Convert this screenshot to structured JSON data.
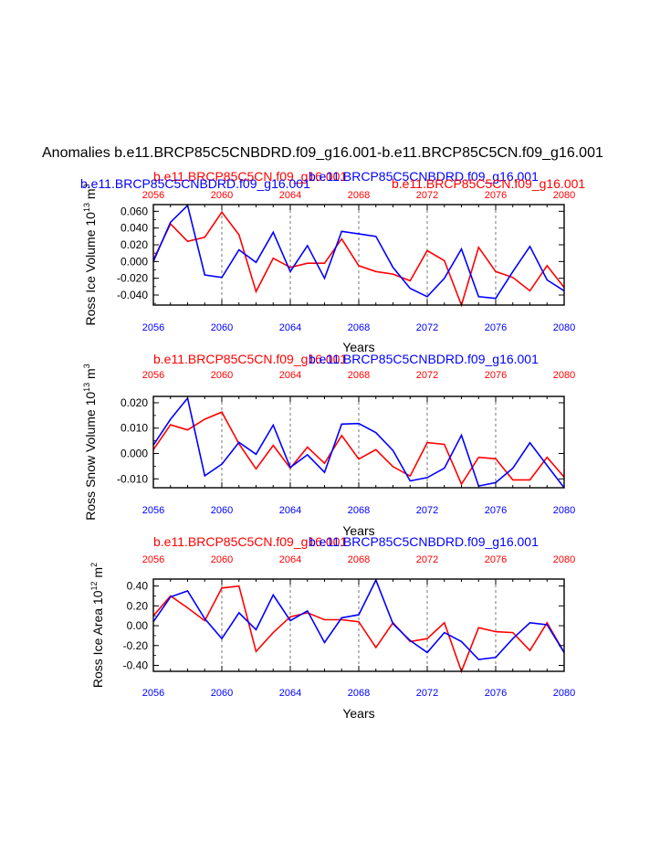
{
  "title": "Anomalies b.e11.BRCP85C5CNBDRD.f09_g16.001-b.e11.BRCP85C5CN.f09_g16.001",
  "colors": {
    "red": "#ff0000",
    "blue": "#0000ff",
    "black": "#000000"
  },
  "chart_data": [
    {
      "type": "line",
      "ylabel_main": "Ross Ice Volume 10",
      "ylabel_exp": "13",
      "ylabel_unit": " m",
      "ylabel_unit_exp": "3",
      "xlabel": "Years",
      "top_left_label_red": "b.e11.BRCP85C5CN.f09_g16.001",
      "top_left_label_blue": "b.e11.BRCP85C5CNBDRD.f09_g16.001",
      "top_mid_label_blue": "b.e11.BRCP85C5CNBDRD.f09_g16.001",
      "top_right_label_red": "b.e11.BRCP85C5CN.f09_g16.001",
      "xlim": [
        2056,
        2080
      ],
      "ylim": [
        -0.052,
        0.068
      ],
      "xticks": [
        "2056",
        "2060",
        "2064",
        "2068",
        "2072",
        "2076",
        "2080"
      ],
      "xtick_values": [
        2056,
        2060,
        2064,
        2068,
        2072,
        2076,
        2080
      ],
      "yticks": [
        "0.060",
        "0.040",
        "0.020",
        "0.000",
        "-0.020",
        "-0.040"
      ],
      "ytick_values": [
        0.06,
        0.04,
        0.02,
        0.0,
        -0.02,
        -0.04
      ],
      "gridlines": [
        2060,
        2064,
        2068,
        2072,
        2076
      ],
      "x": [
        2056,
        2057,
        2058,
        2059,
        2060,
        2061,
        2062,
        2063,
        2064,
        2065,
        2066,
        2067,
        2068,
        2069,
        2070,
        2071,
        2072,
        2073,
        2074,
        2075,
        2076,
        2077,
        2078,
        2079,
        2080
      ],
      "series": [
        {
          "name": "b.e11.BRCP85C5CN.f09_g16.001",
          "color": "#ff0000",
          "values": [
            0.002,
            0.045,
            0.024,
            0.029,
            0.059,
            0.032,
            -0.036,
            0.004,
            -0.007,
            -0.002,
            -0.002,
            0.027,
            -0.005,
            -0.012,
            -0.015,
            -0.023,
            0.013,
            0.001,
            -0.052,
            0.017,
            -0.012,
            -0.019,
            -0.035,
            -0.005,
            -0.031
          ]
        },
        {
          "name": "b.e11.BRCP85C5CNBDRD.f09_g16.001",
          "color": "#0000ff",
          "values": [
            0.0,
            0.047,
            0.067,
            -0.016,
            -0.019,
            0.014,
            -0.001,
            0.035,
            -0.012,
            0.019,
            -0.02,
            0.036,
            0.033,
            0.03,
            -0.007,
            -0.032,
            -0.042,
            -0.02,
            0.015,
            -0.042,
            -0.044,
            -0.012,
            0.018,
            -0.022,
            -0.035
          ]
        }
      ]
    },
    {
      "type": "line",
      "ylabel_main": "Ross Snow Volume 10",
      "ylabel_exp": "13",
      "ylabel_unit": " m",
      "ylabel_unit_exp": "3",
      "xlabel": "Years",
      "top_left_label_red": "b.e11.BRCP85C5CN.f09_g16.001",
      "top_mid_label_blue": "b.e11.BRCP85C5CNBDRD.f09_g16.001",
      "xlim": [
        2056,
        2080
      ],
      "ylim": [
        -0.0135,
        0.0225
      ],
      "xticks": [
        "2056",
        "2060",
        "2064",
        "2068",
        "2072",
        "2076",
        "2080"
      ],
      "xtick_values": [
        2056,
        2060,
        2064,
        2068,
        2072,
        2076,
        2080
      ],
      "yticks": [
        "0.020",
        "0.010",
        "0.000",
        "-0.010"
      ],
      "ytick_values": [
        0.02,
        0.01,
        0.0,
        -0.01
      ],
      "gridlines": [
        2060,
        2064,
        2068,
        2072,
        2076
      ],
      "x": [
        2056,
        2057,
        2058,
        2059,
        2060,
        2061,
        2062,
        2063,
        2064,
        2065,
        2066,
        2067,
        2068,
        2069,
        2070,
        2071,
        2072,
        2073,
        2074,
        2075,
        2076,
        2077,
        2078,
        2079,
        2080
      ],
      "series": [
        {
          "name": "b.e11.BRCP85C5CN.f09_g16.001",
          "color": "#ff0000",
          "values": [
            0.0015,
            0.0113,
            0.0093,
            0.0135,
            0.0163,
            0.0038,
            -0.0061,
            0.0032,
            -0.0058,
            0.0025,
            -0.0039,
            0.0071,
            -0.0022,
            0.0015,
            -0.0052,
            -0.0089,
            0.0043,
            0.0036,
            -0.0121,
            -0.0015,
            -0.0021,
            -0.0104,
            -0.0104,
            -0.0015,
            -0.0093
          ]
        },
        {
          "name": "b.e11.BRCP85C5CNBDRD.f09_g16.001",
          "color": "#0000ff",
          "values": [
            0.0033,
            0.0135,
            0.0218,
            -0.0088,
            -0.0042,
            0.0044,
            -0.0003,
            0.0112,
            -0.0055,
            -0.0005,
            -0.0074,
            0.0116,
            0.0118,
            0.0082,
            0.0012,
            -0.0108,
            -0.0095,
            -0.0058,
            0.0072,
            -0.0128,
            -0.0115,
            -0.0058,
            0.0042,
            -0.0047,
            -0.0135
          ]
        }
      ]
    },
    {
      "type": "line",
      "ylabel_main": "Ross Ice Area 10",
      "ylabel_exp": "12",
      "ylabel_unit": " m",
      "ylabel_unit_exp": "2",
      "xlabel": "Years",
      "top_left_label_red": "b.e11.BRCP85C5CN.f09_g16.001",
      "top_mid_label_blue": "b.e11.BRCP85C5CNBDRD.f09_g16.001",
      "xlim": [
        2056,
        2080
      ],
      "ylim": [
        -0.46,
        0.47
      ],
      "xticks": [
        "2056",
        "2060",
        "2064",
        "2068",
        "2072",
        "2076",
        "2080"
      ],
      "xtick_values": [
        2056,
        2060,
        2064,
        2068,
        2072,
        2076,
        2080
      ],
      "yticks": [
        "0.40",
        "0.20",
        "0.00",
        "-0.20",
        "-0.40"
      ],
      "ytick_values": [
        0.4,
        0.2,
        0.0,
        -0.2,
        -0.4
      ],
      "gridlines": [
        2060,
        2064,
        2068,
        2072,
        2076
      ],
      "x": [
        2056,
        2057,
        2058,
        2059,
        2060,
        2061,
        2062,
        2063,
        2064,
        2065,
        2066,
        2067,
        2068,
        2069,
        2070,
        2071,
        2072,
        2073,
        2074,
        2075,
        2076,
        2077,
        2078,
        2079,
        2080
      ],
      "series": [
        {
          "name": "b.e11.BRCP85C5CN.f09_g16.001",
          "color": "#ff0000",
          "values": [
            0.1,
            0.3,
            0.18,
            0.05,
            0.38,
            0.4,
            -0.26,
            -0.07,
            0.09,
            0.13,
            0.06,
            0.06,
            0.04,
            -0.22,
            0.03,
            -0.16,
            -0.13,
            0.03,
            -0.46,
            -0.02,
            -0.06,
            -0.07,
            -0.25,
            0.03,
            -0.27
          ]
        },
        {
          "name": "b.e11.BRCP85C5CNBDRD.f09_g16.001",
          "color": "#0000ff",
          "values": [
            0.04,
            0.29,
            0.35,
            0.07,
            -0.13,
            0.13,
            -0.04,
            0.31,
            0.05,
            0.15,
            -0.17,
            0.08,
            0.11,
            0.46,
            0.02,
            -0.15,
            -0.27,
            -0.07,
            -0.16,
            -0.34,
            -0.32,
            -0.13,
            0.03,
            0.01,
            -0.27
          ]
        }
      ]
    }
  ]
}
